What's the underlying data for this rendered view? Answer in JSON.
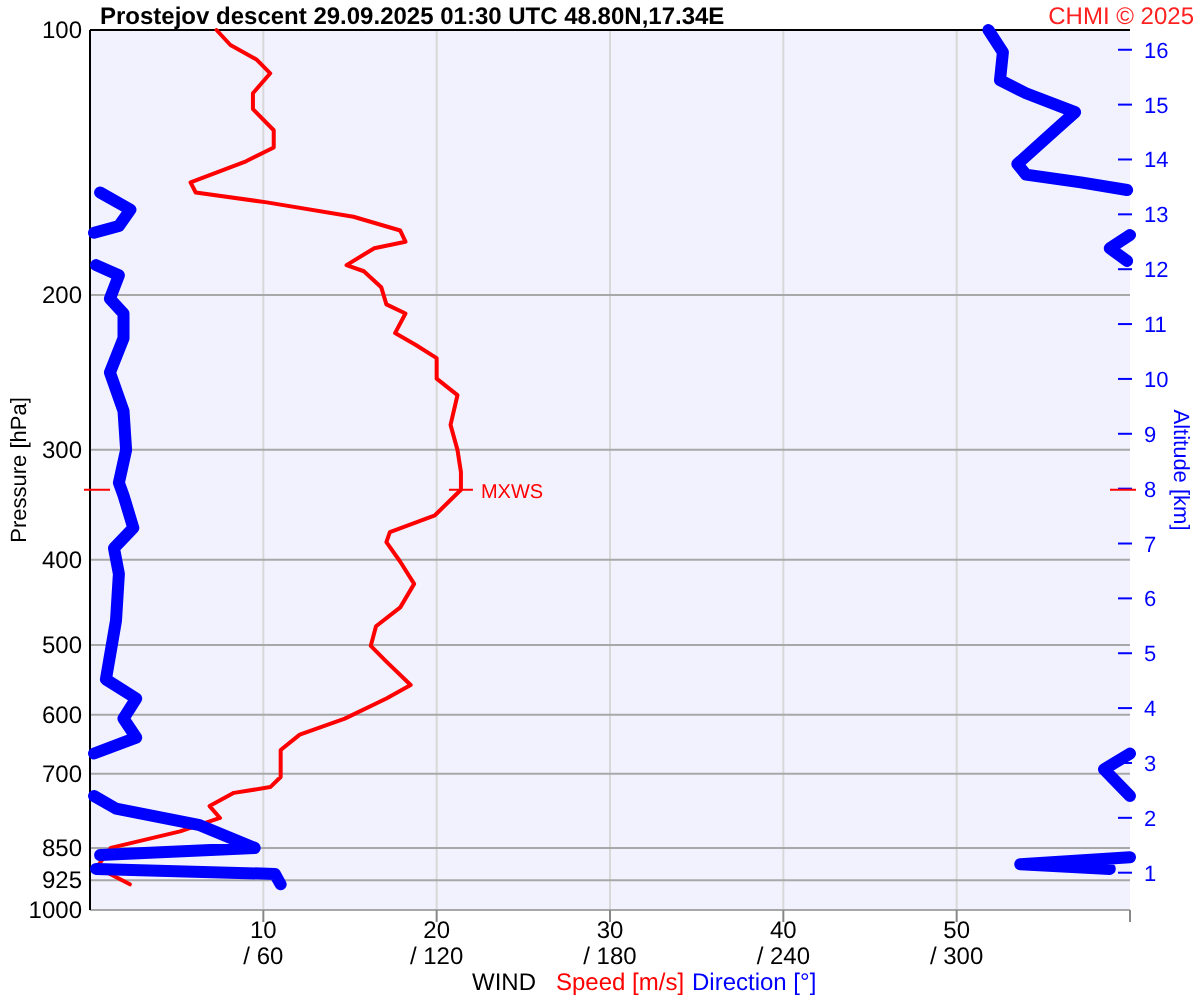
{
  "chart_data": {
    "type": "line",
    "orientation": "horizontal",
    "title": "Prostejov   descent   29.09.2025 01:30 UTC   48.80N,17.34E",
    "xlabel": "WIND",
    "ylabel": "Pressure [hPa]",
    "y2label": "Altitude [km]",
    "annotations": [
      "CHMI © 2025"
    ],
    "log": "y",
    "grid": true,
    "legend": "bottom",
    "xlim": [
      0,
      60
    ],
    "xticks": [
      10,
      20,
      30,
      40,
      50
    ],
    "x2lim": [
      0,
      360
    ],
    "x2ticks": [
      {
        "value": 60,
        "label": "/ 60"
      },
      {
        "value": 120,
        "label": "/ 120"
      },
      {
        "value": 180,
        "label": "/ 180"
      },
      {
        "value": 240,
        "label": "/ 240"
      },
      {
        "value": 300,
        "label": "/ 300"
      }
    ],
    "ylim": [
      1000,
      100
    ],
    "yticks": [
      100,
      200,
      300,
      400,
      500,
      600,
      700,
      850,
      925,
      1000
    ],
    "y2lim": [
      0.32,
      16.36
    ],
    "y2ticks": [
      1,
      2,
      3,
      4,
      5,
      6,
      7,
      8,
      9,
      10,
      11,
      12,
      13,
      14,
      15,
      16
    ],
    "ref_lines": [
      {
        "axis": "y",
        "value": 333,
        "label": "MXWS",
        "color": "#ff0000"
      }
    ],
    "series": [
      {
        "name": "Speed [m/s]",
        "color": "#ff0000",
        "values": [
          7.3,
          8.1,
          9.6,
          10.4,
          9.4,
          9.4,
          10.6,
          10.6,
          9.0,
          5.8,
          6.1,
          10.2,
          15.2,
          17.9,
          18.2,
          16.4,
          14.8,
          15.8,
          16.8,
          17.1,
          18.2,
          17.6,
          18.8,
          20.0,
          20.0,
          21.2,
          20.8,
          21.2,
          21.4,
          21.4,
          19.9,
          17.3,
          17.1,
          17.9,
          18.7,
          17.9,
          16.5,
          16.2,
          17.1,
          18.5,
          17.1,
          14.7,
          12.1,
          11.0,
          11.0,
          10.4,
          8.3,
          6.9,
          7.5,
          5.2,
          1.2,
          0.4,
          2.3
        ],
        "x": [
          100,
          104,
          108,
          112,
          118,
          123,
          130,
          136,
          141,
          149,
          153,
          157,
          163,
          169,
          174,
          177,
          185,
          188,
          196,
          205,
          210,
          221,
          228,
          236,
          249,
          260,
          281,
          300,
          318,
          333,
          356,
          372,
          382,
          402,
          426,
          453,
          476,
          501,
          522,
          555,
          575,
          606,
          632,
          658,
          706,
          725,
          736,
          762,
          786,
          814,
          850,
          894,
          935
        ]
      },
      {
        "name": "Direction [°]",
        "color": "#0000ff",
        "axis": "x2",
        "values": [
          311,
          316,
          315,
          324,
          341,
          334,
          321,
          324,
          343,
          359,
          null,
          3.5,
          14,
          10,
          1.4,
          null,
          360,
          353,
          359,
          null,
          2.1,
          10,
          6.9,
          11.6,
          11.6,
          6.9,
          11.6,
          12.5,
          10,
          11.6,
          15,
          8.3,
          10,
          9,
          5.5,
          16,
          11.6,
          16,
          1.4,
          null,
          360,
          351,
          360,
          null,
          1.4,
          9,
          38,
          57,
          3.5,
          null,
          360,
          322,
          353,
          null,
          2.1,
          64,
          66
        ],
        "x": [
          100,
          106,
          114,
          118,
          124,
          130,
          142,
          146,
          149,
          152,
          null,
          153,
          160,
          167,
          170,
          null,
          171,
          177,
          183,
          null,
          185,
          190,
          202,
          210,
          224,
          245,
          271,
          300,
          327,
          338,
          368,
          388,
          415,
          469,
          547,
          575,
          606,
          637,
          664,
          null,
          664,
          692,
          742,
          null,
          742,
          767,
          801,
          850,
          866,
          null,
          871,
          887,
          898,
          null,
          898,
          910,
          935
        ]
      }
    ]
  }
}
